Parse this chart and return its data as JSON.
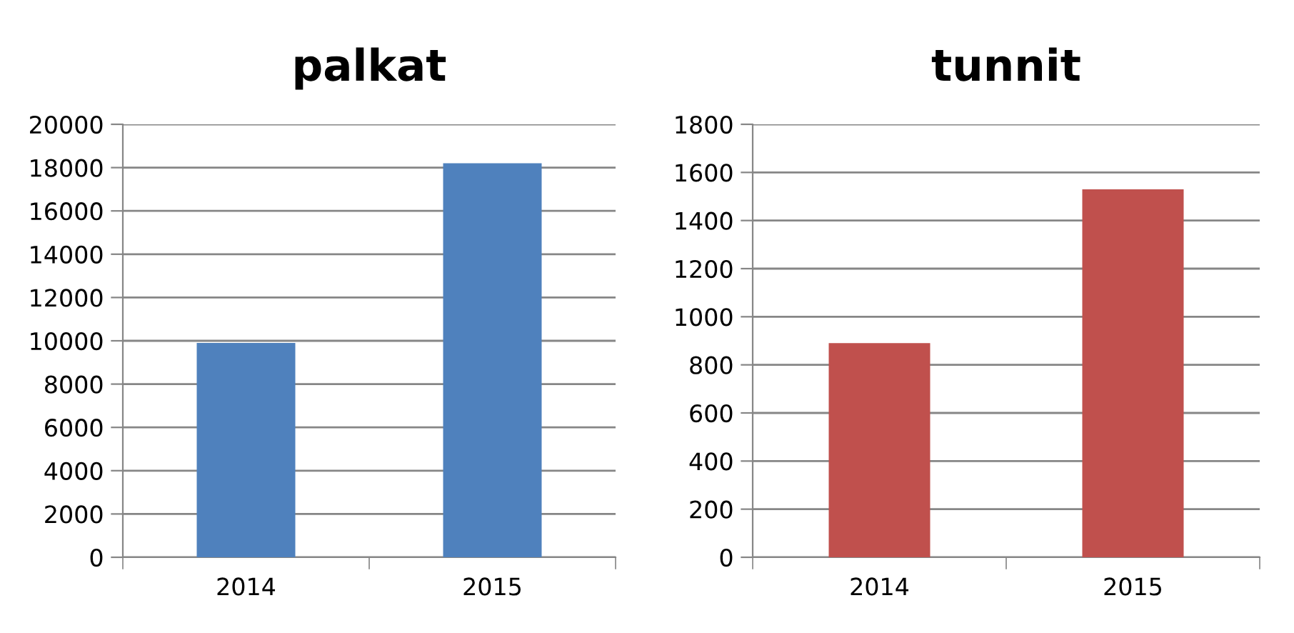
{
  "chart_data": [
    {
      "type": "bar",
      "title": "palkat",
      "categories": [
        "2014",
        "2015"
      ],
      "values": [
        9900,
        18200
      ],
      "color": "#4f81bd",
      "ylim": [
        0,
        20000
      ],
      "yticks": [
        0,
        2000,
        4000,
        6000,
        8000,
        10000,
        12000,
        14000,
        16000,
        18000,
        20000
      ],
      "grid": "y",
      "legend": false
    },
    {
      "type": "bar",
      "title": "tunnit",
      "categories": [
        "2014",
        "2015"
      ],
      "values": [
        890,
        1530
      ],
      "color": "#c0504d",
      "ylim": [
        0,
        1800
      ],
      "yticks": [
        0,
        200,
        400,
        600,
        800,
        1000,
        1200,
        1400,
        1600,
        1800
      ],
      "grid": "y",
      "legend": false
    }
  ]
}
